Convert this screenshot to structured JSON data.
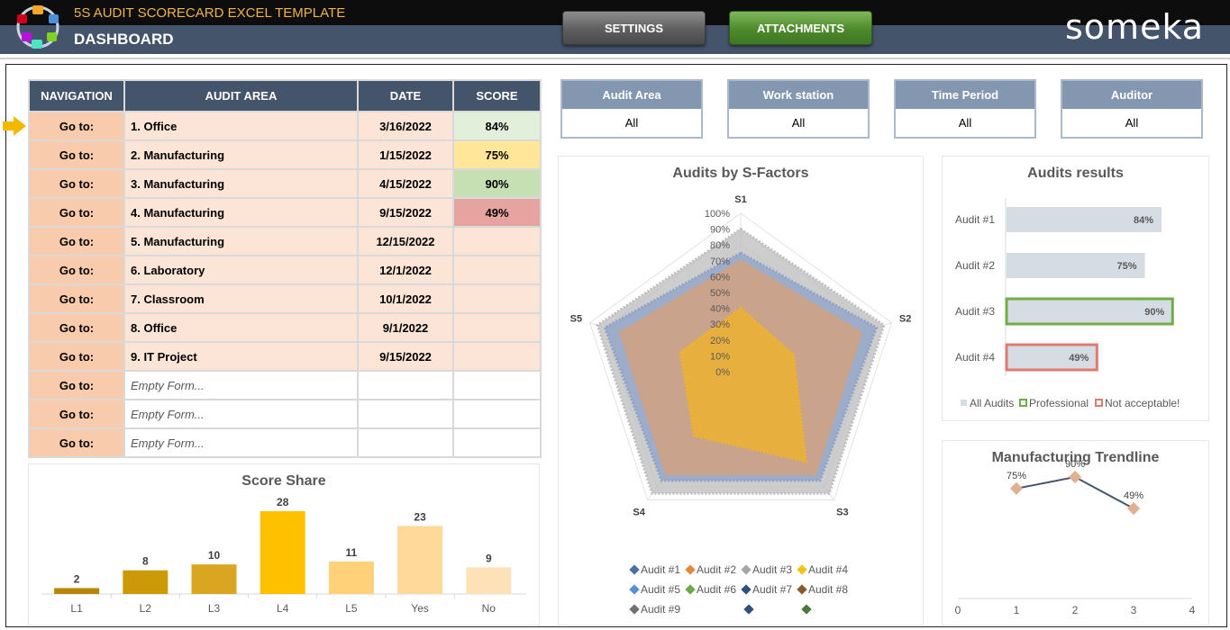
{
  "header": {
    "app_title": "5S AUDIT SCORECARD EXCEL TEMPLATE",
    "page_title": "DASHBOARD",
    "settings_label": "SETTINGS",
    "attachments_label": "ATTACHMENTS",
    "brand": "someka"
  },
  "nav_table": {
    "columns": [
      "NAVIGATION",
      "AUDIT AREA",
      "DATE",
      "SCORE"
    ],
    "rows": [
      {
        "nav": "Go to:",
        "area": "1. Office",
        "date": "3/16/2022",
        "score": "84%"
      },
      {
        "nav": "Go to:",
        "area": "2. Manufacturing",
        "date": "1/15/2022",
        "score": "75%"
      },
      {
        "nav": "Go to:",
        "area": "3. Manufacturing",
        "date": "4/15/2022",
        "score": "90%"
      },
      {
        "nav": "Go to:",
        "area": "4. Manufacturing",
        "date": "9/15/2022",
        "score": "49%"
      },
      {
        "nav": "Go to:",
        "area": "5. Manufacturing",
        "date": "12/15/2022",
        "score": ""
      },
      {
        "nav": "Go to:",
        "area": "6. Laboratory",
        "date": "12/1/2022",
        "score": ""
      },
      {
        "nav": "Go to:",
        "area": "7. Classroom",
        "date": "10/1/2022",
        "score": ""
      },
      {
        "nav": "Go to:",
        "area": "8. Office",
        "date": "9/1/2022",
        "score": ""
      },
      {
        "nav": "Go to:",
        "area": "9. IT Project",
        "date": "9/15/2022",
        "score": ""
      },
      {
        "nav": "Go to:",
        "area": "Empty Form...",
        "date": "",
        "score": ""
      },
      {
        "nav": "Go to:",
        "area": "Empty Form...",
        "date": "",
        "score": ""
      },
      {
        "nav": "Go to:",
        "area": "Empty Form...",
        "date": "",
        "score": ""
      }
    ],
    "score_colors": [
      "#e2efda",
      "#ffe699",
      "#c6e0b4",
      "#e6a39f"
    ]
  },
  "filters": [
    {
      "label": "Audit Area",
      "value": "All"
    },
    {
      "label": "Work station",
      "value": "All"
    },
    {
      "label": "Time Period",
      "value": "All"
    },
    {
      "label": "Auditor",
      "value": "All"
    }
  ],
  "chart_data": [
    {
      "type": "bar",
      "title": "Score Share",
      "categories": [
        "L1",
        "L2",
        "L3",
        "L4",
        "L5",
        "Yes",
        "No"
      ],
      "values": [
        2,
        8,
        10,
        28,
        11,
        23,
        9
      ],
      "colors": [
        "#b8860b",
        "#cc9a06",
        "#daa520",
        "#ffc000",
        "#ffd27a",
        "#ffd99a",
        "#fde2b8"
      ]
    },
    {
      "type": "radar",
      "title": "Audits by S-Factors",
      "axes": [
        "S1",
        "S2",
        "S3",
        "S4",
        "S5"
      ],
      "ticks": [
        "0%",
        "10%",
        "20%",
        "30%",
        "40%",
        "50%",
        "60%",
        "70%",
        "80%",
        "90%",
        "100%"
      ],
      "series": [
        {
          "name": "Audit #1",
          "values": [
            0.75,
            0.9,
            0.85,
            0.85,
            0.9
          ],
          "color": "#8ea3c8"
        },
        {
          "name": "Audit #2",
          "values": [
            0.7,
            0.8,
            0.8,
            0.8,
            0.8
          ],
          "color": "#d6a07a"
        },
        {
          "name": "Audit #3",
          "values": [
            0.9,
            0.95,
            0.95,
            0.95,
            0.95
          ],
          "color": "#bfbfbf"
        },
        {
          "name": "Audit #4",
          "values": [
            0.4,
            0.35,
            0.7,
            0.5,
            0.4
          ],
          "color": "#f0b429"
        }
      ],
      "legend": [
        "Audit #1",
        "Audit #2",
        "Audit #3",
        "Audit #4",
        "Audit #5",
        "Audit #6",
        "Audit #7",
        "Audit #8",
        "Audit #9"
      ],
      "legend_colors": [
        "#4a6fa5",
        "#e0893a",
        "#a6a6a6",
        "#f0c419",
        "#5b8fd6",
        "#6aaa45",
        "#2f4f7f",
        "#8b5a2b",
        "#707070"
      ]
    },
    {
      "type": "bar",
      "title": "Audits results",
      "categories": [
        "Audit #1",
        "Audit #2",
        "Audit #3",
        "Audit #4"
      ],
      "values": [
        84,
        75,
        90,
        49
      ],
      "labels": [
        "84%",
        "75%",
        "90%",
        "49%"
      ],
      "highlight": [
        "",
        "",
        "Professional",
        "Not acceptable!"
      ],
      "legend": [
        "All Audits",
        "Professional",
        "Not acceptable!"
      ],
      "legend_colors": [
        "#d6dce4",
        "#70ad47",
        "#e07a6e"
      ]
    },
    {
      "type": "line",
      "title": "Manufacturing Trendline",
      "x": [
        1,
        2,
        3
      ],
      "y": [
        75,
        90,
        49
      ],
      "labels": [
        "75%",
        "90%",
        "49%"
      ],
      "xticks": [
        "0",
        "1",
        "2",
        "3",
        "4"
      ],
      "xlim": [
        0,
        4
      ]
    }
  ]
}
